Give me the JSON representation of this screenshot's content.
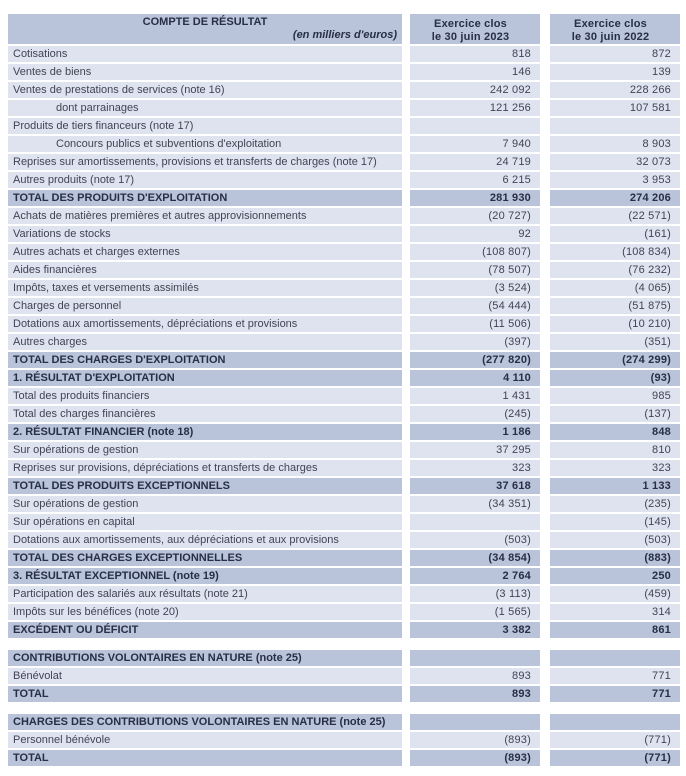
{
  "colors": {
    "row_dark": "#b9c3da",
    "row_light": "#dfe3ef",
    "text": "#3f4456",
    "text_bold": "#272e47"
  },
  "header": {
    "title": "COMPTE DE RÉSULTAT",
    "subtitle": "(en milliers d'euros)",
    "col2023_line1": "Exercice clos",
    "col2023_line2": "le 30 juin 2023",
    "col2022_line1": "Exercice clos",
    "col2022_line2": "le 30 juin 2022"
  },
  "rows": [
    {
      "type": "normal",
      "label": "Cotisations",
      "v2023": "818",
      "v2022": "872"
    },
    {
      "type": "normal",
      "label": "Ventes de biens",
      "v2023": "146",
      "v2022": "139"
    },
    {
      "type": "normal",
      "label": "Ventes de prestations de services (note 16)",
      "v2023": "242 092",
      "v2022": "228 266"
    },
    {
      "type": "indent",
      "label": "dont parrainages",
      "v2023": "121 256",
      "v2022": "107 581"
    },
    {
      "type": "normal",
      "label": "Produits de tiers financeurs (note 17)",
      "v2023": "",
      "v2022": ""
    },
    {
      "type": "indent",
      "label": "Concours publics et subventions d'exploitation",
      "v2023": "7 940",
      "v2022": "8 903"
    },
    {
      "type": "normal",
      "label": "Reprises sur amortissements, provisions et transferts de charges (note 17)",
      "v2023": "24 719",
      "v2022": "32 073"
    },
    {
      "type": "normal",
      "label": "Autres produits (note 17)",
      "v2023": "6 215",
      "v2022": "3 953"
    },
    {
      "type": "total",
      "label": "TOTAL DES PRODUITS D'EXPLOITATION",
      "v2023": "281 930",
      "v2022": "274 206"
    },
    {
      "type": "normal",
      "label": "Achats de matières premières et autres approvisionnements",
      "v2023": "(20 727)",
      "v2022": "(22 571)"
    },
    {
      "type": "normal",
      "label": "Variations de stocks",
      "v2023": "92",
      "v2022": "(161)"
    },
    {
      "type": "normal",
      "label": "Autres achats et charges externes",
      "v2023": "(108 807)",
      "v2022": "(108 834)"
    },
    {
      "type": "normal",
      "label": "Aides financières",
      "v2023": "(78 507)",
      "v2022": "(76 232)"
    },
    {
      "type": "normal",
      "label": "Impôts, taxes et versements assimilés",
      "v2023": "(3 524)",
      "v2022": "(4 065)"
    },
    {
      "type": "normal",
      "label": "Charges de personnel",
      "v2023": "(54 444)",
      "v2022": "(51 875)"
    },
    {
      "type": "normal",
      "label": "Dotations aux amortissements, dépréciations et provisions",
      "v2023": "(11 506)",
      "v2022": "(10 210)"
    },
    {
      "type": "normal",
      "label": "Autres charges",
      "v2023": "(397)",
      "v2022": "(351)"
    },
    {
      "type": "total",
      "label": "TOTAL DES CHARGES D'EXPLOITATION",
      "v2023": "(277 820)",
      "v2022": "(274 299)"
    },
    {
      "type": "total",
      "label": "1. RÉSULTAT D'EXPLOITATION",
      "v2023": "4 110",
      "v2022": "(93)"
    },
    {
      "type": "normal",
      "label": "Total des produits financiers",
      "v2023": "1 431",
      "v2022": "985"
    },
    {
      "type": "normal",
      "label": "Total des charges financières",
      "v2023": "(245)",
      "v2022": "(137)"
    },
    {
      "type": "total",
      "label": "2. RÉSULTAT FINANCIER (note 18)",
      "v2023": "1 186",
      "v2022": "848"
    },
    {
      "type": "normal",
      "label": "Sur opérations de gestion",
      "v2023": "37 295",
      "v2022": "810"
    },
    {
      "type": "normal",
      "label": "Reprises sur provisions, dépréciations et transferts de charges",
      "v2023": "323",
      "v2022": "323"
    },
    {
      "type": "total",
      "label": "TOTAL DES PRODUITS EXCEPTIONNELS",
      "v2023": "37 618",
      "v2022": "1 133"
    },
    {
      "type": "normal",
      "label": "Sur opérations de gestion",
      "v2023": "(34 351)",
      "v2022": "(235)"
    },
    {
      "type": "normal",
      "label": "Sur opérations en capital",
      "v2023": "",
      "v2022": "(145)"
    },
    {
      "type": "normal",
      "label": "Dotations aux amortissements, aux dépréciations et aux provisions",
      "v2023": "(503)",
      "v2022": "(503)"
    },
    {
      "type": "total",
      "label": "TOTAL DES CHARGES EXCEPTIONNELLES",
      "v2023": "(34 854)",
      "v2022": "(883)"
    },
    {
      "type": "total",
      "label": "3. RÉSULTAT EXCEPTIONNEL (note 19)",
      "v2023": "2 764",
      "v2022": "250"
    },
    {
      "type": "normal",
      "label": "Participation des salariés aux résultats (note 21)",
      "v2023": "(3 113)",
      "v2022": "(459)"
    },
    {
      "type": "normal",
      "label": "Impôts sur les bénéfices (note 20)",
      "v2023": "(1 565)",
      "v2022": "314"
    },
    {
      "type": "total",
      "label": "EXCÉDENT OU DÉFICIT",
      "v2023": "3 382",
      "v2022": "861"
    },
    {
      "type": "spacer"
    },
    {
      "type": "total",
      "label": "CONTRIBUTIONS VOLONTAIRES EN NATURE (note 25)",
      "v2023": "",
      "v2022": ""
    },
    {
      "type": "normal",
      "label": "Bénévolat",
      "v2023": "893",
      "v2022": "771"
    },
    {
      "type": "total",
      "label": "TOTAL",
      "v2023": "893",
      "v2022": "771"
    },
    {
      "type": "spacer"
    },
    {
      "type": "total",
      "label": "CHARGES DES CONTRIBUTIONS VOLONTAIRES EN NATURE (note 25)",
      "v2023": "",
      "v2022": ""
    },
    {
      "type": "normal",
      "label": "Personnel bénévole",
      "v2023": "(893)",
      "v2022": "(771)"
    },
    {
      "type": "total",
      "label": "TOTAL",
      "v2023": "(893)",
      "v2022": "(771)"
    }
  ]
}
